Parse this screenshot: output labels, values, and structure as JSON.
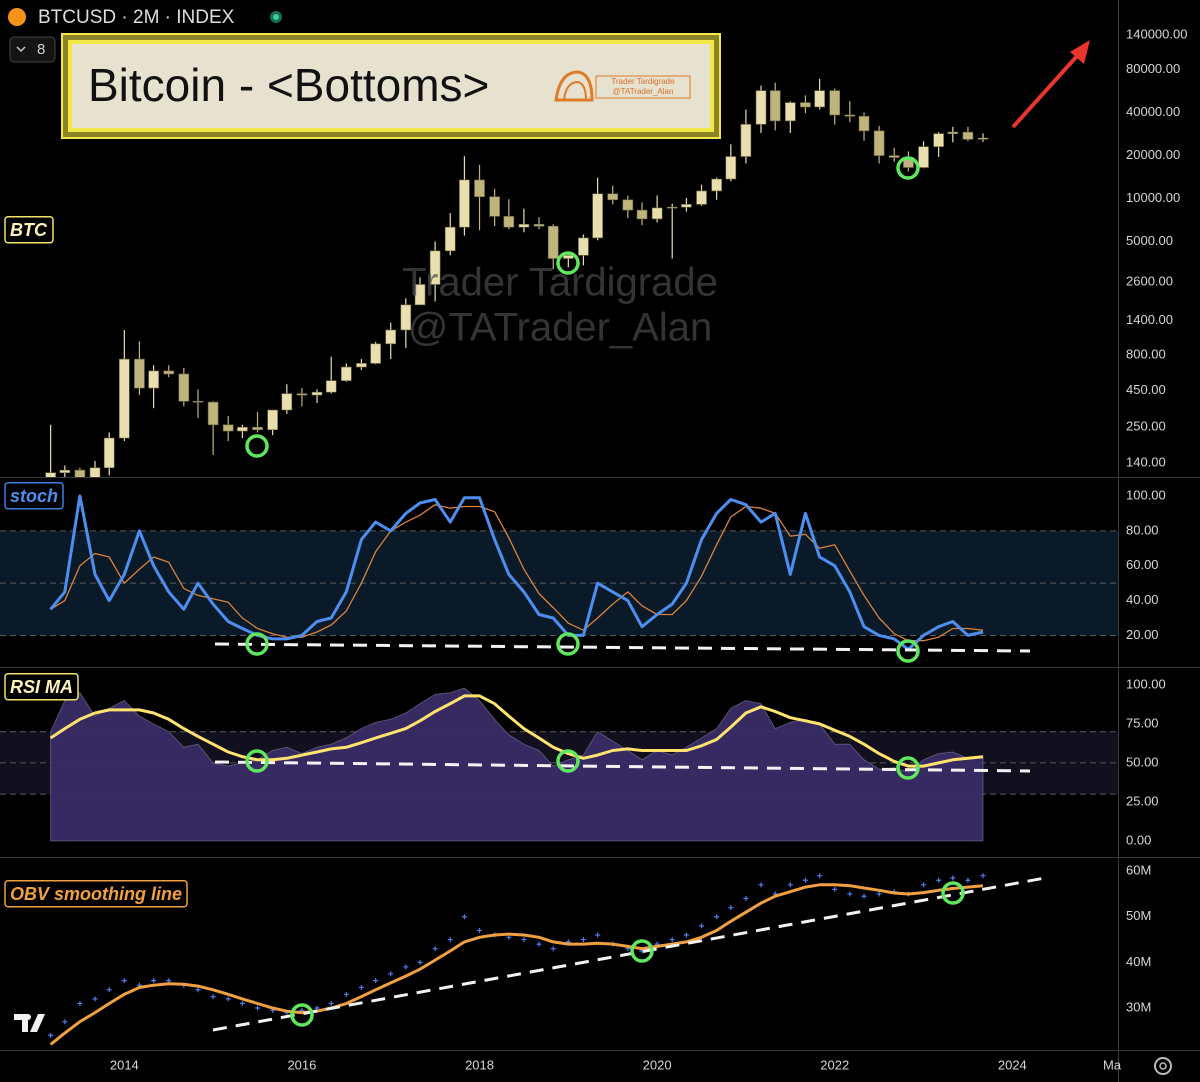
{
  "header": {
    "symbol": "BTCUSD · 2M · INDEX",
    "count": "8"
  },
  "annotation": {
    "title": "Bitcoin - <Bottoms>",
    "logo_lines": [
      "Trader Tardigrade",
      "@TATrader_Alan"
    ]
  },
  "watermark": [
    "Trader Tardigrade",
    "@TATrader_Alan"
  ],
  "time_axis_partial_label": "Ma",
  "chart_data": [
    {
      "type": "candlestick",
      "label": "BTC",
      "x": [
        2013.17,
        2013.33,
        2013.5,
        2013.67,
        2013.83,
        2014,
        2014.17,
        2014.33,
        2014.5,
        2014.67,
        2014.83,
        2015,
        2015.17,
        2015.33,
        2015.5,
        2015.67,
        2015.83,
        2016,
        2016.17,
        2016.33,
        2016.5,
        2016.67,
        2016.83,
        2017,
        2017.17,
        2017.33,
        2017.5,
        2017.67,
        2017.83,
        2018,
        2018.17,
        2018.33,
        2018.5,
        2018.67,
        2018.83,
        2019,
        2019.17,
        2019.33,
        2019.5,
        2019.67,
        2019.83,
        2020,
        2020.17,
        2020.33,
        2020.5,
        2020.67,
        2020.83,
        2021,
        2021.17,
        2021.33,
        2021.5,
        2021.67,
        2021.83,
        2022,
        2022.17,
        2022.33,
        2022.5,
        2022.67,
        2022.83,
        2023,
        2023.17,
        2023.33,
        2023.5,
        2023.67
      ],
      "open": [
        95,
        120,
        125,
        110,
        130,
        210,
        750,
        470,
        620,
        590,
        380,
        375,
        260,
        235,
        250,
        240,
        330,
        430,
        420,
        440,
        530,
        660,
        700,
        960,
        1200,
        1800,
        2500,
        4300,
        6300,
        13500,
        10300,
        7500,
        6300,
        6600,
        6400,
        3800,
        4000,
        5300,
        10800,
        9800,
        8300,
        7200,
        8600,
        8700,
        9100,
        11300,
        13700,
        19700,
        33100,
        57000,
        35000,
        47000,
        43800,
        57000,
        38500,
        37700,
        29800,
        20000,
        19400,
        16500,
        23100,
        28500,
        29200,
        26000
      ],
      "high": [
        260,
        135,
        130,
        145,
        230,
        1200,
        1000,
        680,
        680,
        650,
        460,
        380,
        300,
        260,
        320,
        330,
        500,
        470,
        460,
        780,
        700,
        750,
        990,
        1350,
        2000,
        2800,
        5000,
        7900,
        19800,
        17200,
        11700,
        9900,
        8500,
        7400,
        6600,
        4200,
        5600,
        14000,
        12300,
        10500,
        9400,
        10500,
        9200,
        10100,
        12500,
        14000,
        24000,
        42000,
        61700,
        64800,
        48000,
        52900,
        69000,
        59000,
        48200,
        40000,
        32300,
        22700,
        21400,
        25200,
        29200,
        31800,
        31800,
        28600
      ],
      "low": [
        80,
        80,
        65,
        100,
        115,
        200,
        420,
        340,
        560,
        350,
        290,
        160,
        200,
        210,
        230,
        220,
        310,
        350,
        370,
        430,
        520,
        630,
        690,
        750,
        900,
        1800,
        1900,
        4000,
        5500,
        6000,
        6400,
        6100,
        5800,
        6100,
        3200,
        3300,
        3400,
        5100,
        9100,
        7300,
        6500,
        6800,
        3800,
        8100,
        8900,
        9800,
        13200,
        17600,
        28800,
        30000,
        28800,
        39600,
        42000,
        32900,
        34300,
        25400,
        17600,
        18100,
        15500,
        16300,
        19600,
        24800,
        25200,
        25000
      ],
      "close": [
        120,
        125,
        110,
        130,
        210,
        750,
        470,
        620,
        590,
        380,
        375,
        260,
        235,
        250,
        240,
        330,
        430,
        420,
        440,
        530,
        660,
        700,
        960,
        1200,
        1800,
        2500,
        4300,
        6300,
        13500,
        10300,
        7500,
        6300,
        6600,
        6400,
        3800,
        4000,
        5300,
        10800,
        9800,
        8300,
        7200,
        8600,
        8700,
        9100,
        11300,
        13700,
        19700,
        33100,
        57000,
        35000,
        47000,
        43800,
        57000,
        38500,
        37700,
        29800,
        20000,
        19400,
        16500,
        23100,
        28500,
        29200,
        26000,
        26500
      ],
      "xlim": [
        2012.6,
        2025.19
      ],
      "ylim": [
        112,
        246000
      ],
      "log_scale": true,
      "yticks": [
        {
          "value": 140,
          "label": "140.00"
        },
        {
          "value": 250,
          "label": "250.00"
        },
        {
          "value": 450,
          "label": "450.00"
        },
        {
          "value": 800,
          "label": "800.00"
        },
        {
          "value": 1400,
          "label": "1400.00"
        },
        {
          "value": 2600,
          "label": "2600.00"
        },
        {
          "value": 5000,
          "label": "5000.00"
        },
        {
          "value": 10000,
          "label": "10000.00"
        },
        {
          "value": 20000,
          "label": "20000.00"
        },
        {
          "value": 40000,
          "label": "40000.00"
        },
        {
          "value": 80000,
          "label": "80000.00"
        },
        {
          "value": 140000,
          "label": "140000.00"
        }
      ],
      "up_color": "#e9dfae",
      "down_color": "#bfb47c"
    },
    {
      "type": "line",
      "series": [
        {
          "name": "stoch",
          "color": "#4d8ff0",
          "values": [
            35,
            45,
            100,
            55,
            40,
            55,
            80,
            60,
            45,
            35,
            50,
            38,
            28,
            24,
            20,
            18,
            18,
            20,
            28,
            30,
            45,
            75,
            85,
            80,
            90,
            96,
            98,
            85,
            99,
            99,
            75,
            55,
            45,
            32,
            30,
            20,
            20,
            50,
            45,
            40,
            25,
            32,
            38,
            50,
            75,
            90,
            98,
            95,
            85,
            90,
            55,
            90,
            65,
            60,
            45,
            25,
            20,
            18,
            12,
            20,
            25,
            28,
            20,
            22
          ]
        },
        {
          "color": "#d9823a",
          "values": [
            35,
            40,
            60,
            67,
            65,
            50,
            58,
            65,
            62,
            47,
            43,
            41,
            39,
            30,
            24,
            21,
            19,
            19,
            22,
            26,
            34,
            50,
            68,
            80,
            85,
            89,
            95,
            93,
            94,
            94,
            91,
            76,
            58,
            44,
            36,
            27,
            23,
            30,
            38,
            45,
            37,
            32,
            32,
            40,
            54,
            72,
            88,
            94,
            93,
            90,
            77,
            78,
            70,
            72,
            57,
            43,
            30,
            21,
            17,
            17,
            19,
            24,
            24,
            23
          ]
        }
      ],
      "ylim": [
        1.9,
        110.9
      ],
      "yticks": [
        {
          "value": 20,
          "label": "20.00"
        },
        {
          "value": 40,
          "label": "40.00"
        },
        {
          "value": 60,
          "label": "60.00"
        },
        {
          "value": 80,
          "label": "80.00"
        },
        {
          "value": 100,
          "label": "100.00"
        }
      ],
      "band": [
        20,
        80
      ],
      "midline": 50,
      "band_color": "#0b1a29"
    },
    {
      "type": "area_line",
      "label": "RSI MA",
      "series": [
        {
          "color": "#3a2c66",
          "values": [
            70,
            90,
            95,
            80,
            85,
            90,
            80,
            75,
            70,
            60,
            62,
            50,
            48,
            50,
            52,
            58,
            60,
            56,
            60,
            62,
            66,
            72,
            76,
            78,
            82,
            88,
            94,
            95,
            98,
            90,
            78,
            68,
            62,
            58,
            48,
            52,
            55,
            70,
            64,
            58,
            52,
            58,
            55,
            60,
            66,
            72,
            85,
            90,
            88,
            72,
            76,
            78,
            75,
            62,
            62,
            52,
            46,
            47,
            44,
            52,
            56,
            57,
            53,
            54
          ]
        },
        {
          "color": "#ffe36e",
          "values": [
            66,
            72,
            78,
            82,
            84,
            84,
            84,
            82,
            78,
            72,
            67,
            62,
            57,
            54,
            52,
            52,
            53,
            55,
            57,
            59,
            60,
            63,
            66,
            69,
            72,
            77,
            83,
            88,
            93,
            93,
            88,
            80,
            72,
            66,
            60,
            56,
            53,
            55,
            58,
            59,
            58,
            58,
            58,
            58,
            61,
            65,
            73,
            82,
            86,
            83,
            79,
            77,
            75,
            71,
            67,
            62,
            56,
            51,
            48,
            48,
            50,
            52,
            53,
            54
          ]
        }
      ],
      "ylim": [
        -10.3,
        111.5
      ],
      "yticks": [
        {
          "value": 0,
          "label": "0.00"
        },
        {
          "value": 25,
          "label": "25.00"
        },
        {
          "value": 50,
          "label": "50.00"
        },
        {
          "value": 75,
          "label": "75.00"
        },
        {
          "value": 100,
          "label": "100.00"
        }
      ],
      "band": [
        30,
        70
      ],
      "midline": 50,
      "band_color": "#120f1e"
    },
    {
      "type": "line",
      "label": "OBV smoothing line",
      "series": [
        {
          "color": "#f0a040",
          "values": [
            22000000,
            24500000,
            27000000,
            29000000,
            31000000,
            33000000,
            34500000,
            35000000,
            35300000,
            35200000,
            34800000,
            34000000,
            33000000,
            32000000,
            31000000,
            30000000,
            29300000,
            29000000,
            29300000,
            30000000,
            31000000,
            32500000,
            34000000,
            35500000,
            37000000,
            38500000,
            40500000,
            42500000,
            44500000,
            45500000,
            46000000,
            46200000,
            46000000,
            45500000,
            44500000,
            44000000,
            44000000,
            44200000,
            44000000,
            43500000,
            43000000,
            43500000,
            44000000,
            44500000,
            45500000,
            47000000,
            49000000,
            51000000,
            53000000,
            54500000,
            55500000,
            56500000,
            57000000,
            57000000,
            56800000,
            56300000,
            55800000,
            55200000,
            55000000,
            55300000,
            55800000,
            56200000,
            56500000,
            56800000
          ]
        },
        {
          "color": "#4a7ef0",
          "marker": "+",
          "values": [
            24000000,
            27000000,
            31000000,
            32000000,
            34000000,
            36000000,
            35000000,
            36000000,
            36000000,
            35000000,
            34000000,
            32500000,
            32000000,
            31000000,
            30000000,
            29500000,
            29000000,
            29500000,
            30000000,
            31000000,
            33000000,
            34500000,
            36000000,
            37500000,
            39000000,
            40000000,
            43000000,
            45000000,
            50000000,
            47000000,
            46000000,
            45500000,
            45000000,
            44000000,
            43000000,
            44500000,
            45000000,
            46000000,
            44000000,
            43000000,
            42500000,
            44000000,
            45000000,
            46000000,
            48000000,
            50000000,
            52000000,
            54000000,
            57000000,
            55000000,
            57000000,
            58000000,
            59000000,
            56000000,
            55000000,
            54500000,
            55000000,
            55500000,
            55000000,
            57000000,
            58000000,
            58500000,
            58000000,
            59000000
          ]
        }
      ],
      "ylim": [
        20800000,
        63100000
      ],
      "yticks": [
        {
          "value": 30000000,
          "label": "30M"
        },
        {
          "value": 40000000,
          "label": "40M"
        },
        {
          "value": 50000000,
          "label": "50M"
        },
        {
          "value": 60000000,
          "label": "60M"
        }
      ],
      "xticks": [
        2014,
        2016,
        2018,
        2020,
        2022,
        2024
      ]
    }
  ]
}
